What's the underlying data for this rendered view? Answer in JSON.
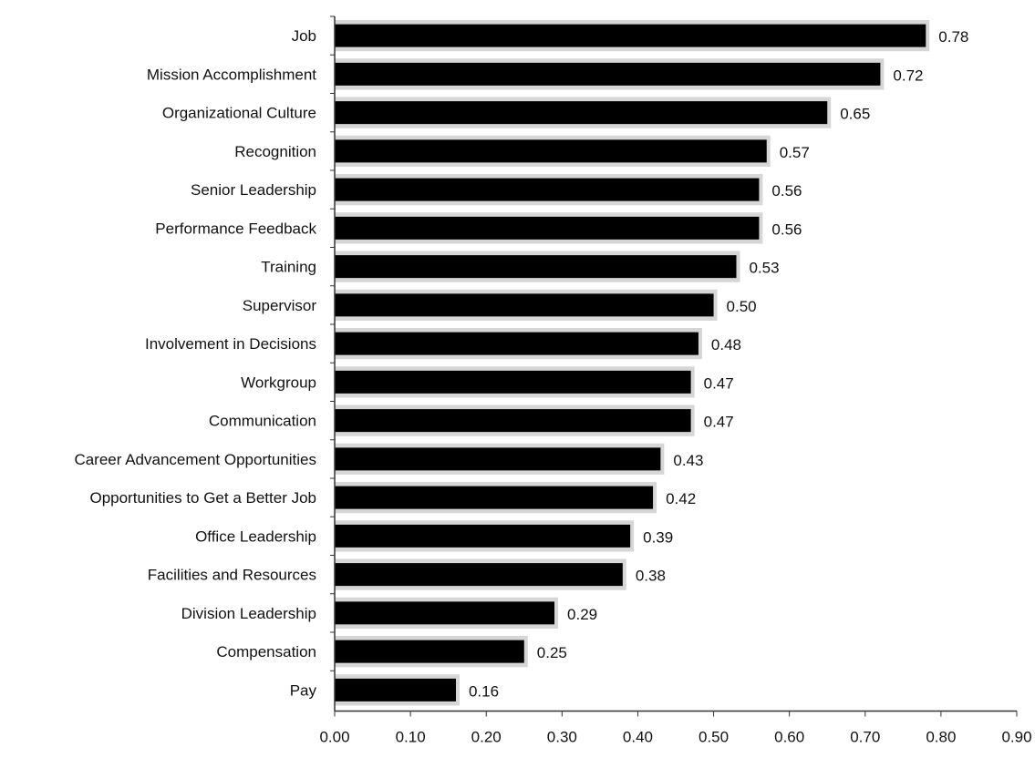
{
  "chart_data": {
    "type": "bar",
    "orientation": "horizontal",
    "categories": [
      "Job",
      "Mission Accomplishment",
      "Organizational Culture",
      "Recognition",
      "Senior Leadership",
      "Performance Feedback",
      "Training",
      "Supervisor",
      "Involvement in Decisions",
      "Workgroup",
      "Communication",
      "Career Advancement Opportunities",
      "Opportunities to Get a Better Job",
      "Office Leadership",
      "Facilities and Resources",
      "Division Leadership",
      "Compensation",
      "Pay"
    ],
    "values": [
      0.78,
      0.72,
      0.65,
      0.57,
      0.56,
      0.56,
      0.53,
      0.5,
      0.48,
      0.47,
      0.47,
      0.43,
      0.42,
      0.39,
      0.38,
      0.29,
      0.25,
      0.16
    ],
    "value_labels": [
      "0.78",
      "0.72",
      "0.65",
      "0.57",
      "0.56",
      "0.56",
      "0.53",
      "0.50",
      "0.48",
      "0.47",
      "0.47",
      "0.43",
      "0.42",
      "0.39",
      "0.38",
      "0.29",
      "0.25",
      "0.16"
    ],
    "xticks": [
      0.0,
      0.1,
      0.2,
      0.3,
      0.4,
      0.5,
      0.6,
      0.7,
      0.8,
      0.9
    ],
    "xtick_labels": [
      "0.00",
      "0.10",
      "0.20",
      "0.30",
      "0.40",
      "0.50",
      "0.60",
      "0.70",
      "0.80",
      "0.90"
    ],
    "xlim": [
      0,
      0.9
    ],
    "title": "",
    "xlabel": "",
    "ylabel": "",
    "grid": false,
    "legend": "none",
    "colors": {
      "bar": "#000000",
      "band": "#d6d6d6",
      "axis": "#333333",
      "text": "#111111"
    }
  }
}
